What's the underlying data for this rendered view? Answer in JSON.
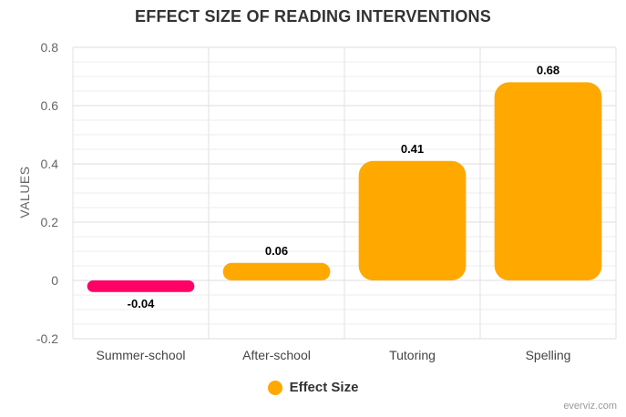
{
  "chart_data": {
    "type": "bar",
    "title": "EFFECT SIZE OF READING INTERVENTIONS",
    "ylabel": "VALUES",
    "xlabel": "",
    "categories": [
      "Summer-school",
      "After-school",
      "Tutoring",
      "Spelling"
    ],
    "series": [
      {
        "name": "Effect Size",
        "values": [
          -0.04,
          0.06,
          0.41,
          0.68
        ]
      }
    ],
    "value_labels": [
      "-0.04",
      "0.06",
      "0.41",
      "0.68"
    ],
    "ylim": [
      -0.2,
      0.8
    ],
    "yticks": [
      -0.2,
      0,
      0.2,
      0.4,
      0.6,
      0.8
    ],
    "ytick_labels": [
      "-0.2",
      "0",
      "0.2",
      "0.4",
      "0.6",
      "0.8"
    ],
    "grid": true,
    "legend_position": "bottom-center",
    "colors": {
      "positive": "#ffa800",
      "negative": "#ff0066"
    }
  },
  "credit": "everviz.com"
}
